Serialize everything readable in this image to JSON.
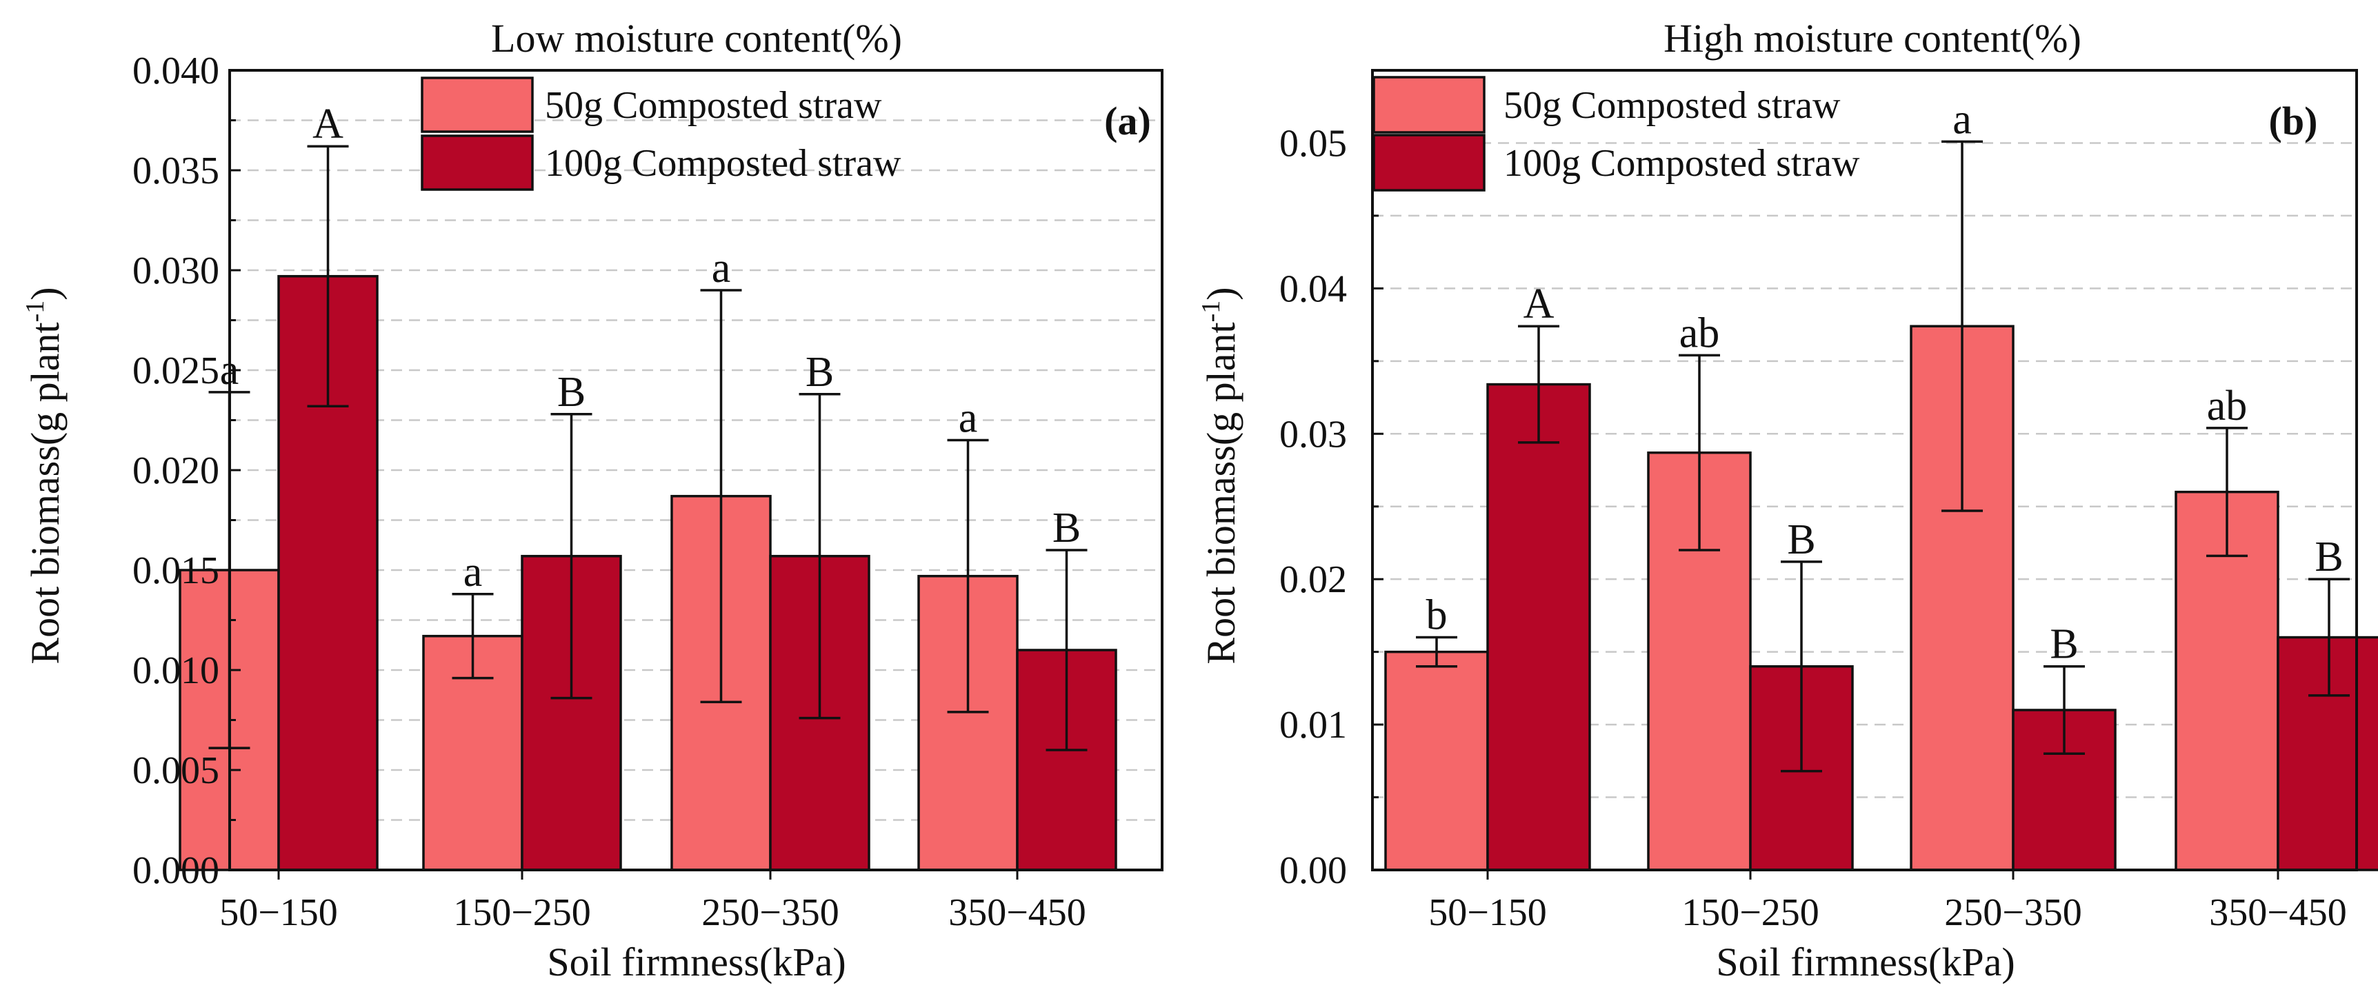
{
  "chart_data": [
    {
      "type": "bar",
      "panel_label": "(a)",
      "title": "Low moisture content(%)",
      "xlabel": "Soil firmness(kPa)",
      "ylabel": "Root biomass(g plant",
      "ylabel_sup": "-1",
      "ylabel_close": ")",
      "ylim": [
        0,
        0.04
      ],
      "yticks": [
        0.0,
        0.005,
        0.01,
        0.015,
        0.02,
        0.025,
        0.03,
        0.035,
        0.04
      ],
      "ytick_labels": [
        "0.000",
        "0.005",
        "0.010",
        "0.015",
        "0.020",
        "0.025",
        "0.030",
        "0.035",
        "0.040"
      ],
      "grid": true,
      "legend_position": "top",
      "categories": [
        "50−150",
        "150−250",
        "250−350",
        "350−450"
      ],
      "series": [
        {
          "name": "50g Composted straw",
          "color": "#f5676a",
          "values": [
            0.015,
            0.0117,
            0.0187,
            0.0147
          ],
          "errors": [
            0.0089,
            0.0021,
            0.0103,
            0.0068
          ],
          "letters": [
            "a",
            "a",
            "a",
            "a"
          ]
        },
        {
          "name": "100g Composted straw",
          "color": "#b50627",
          "values": [
            0.0297,
            0.0157,
            0.0157,
            0.011
          ],
          "errors": [
            0.0065,
            0.0071,
            0.0081,
            0.005
          ],
          "letters": [
            "A",
            "B",
            "B",
            "B"
          ]
        }
      ]
    },
    {
      "type": "bar",
      "panel_label": "(b)",
      "title": "High moisture content(%)",
      "xlabel": "Soil firmness(kPa)",
      "ylabel": "Root biomass(g plant",
      "ylabel_sup": "-1",
      "ylabel_close": ")",
      "ylim": [
        0,
        0.055
      ],
      "yticks": [
        0.0,
        0.01,
        0.02,
        0.03,
        0.04,
        0.05
      ],
      "ytick_labels": [
        "0.00",
        "0.01",
        "0.02",
        "0.03",
        "0.04",
        "0.05"
      ],
      "grid": true,
      "legend_position": "top-left",
      "categories": [
        "50−150",
        "150−250",
        "250−350",
        "350−450"
      ],
      "series": [
        {
          "name": "50g Composted straw",
          "color": "#f5676a",
          "values": [
            0.015,
            0.0287,
            0.0374,
            0.026
          ],
          "errors": [
            0.001,
            0.0067,
            0.0127,
            0.0044
          ],
          "letters": [
            "b",
            "ab",
            "a",
            "ab"
          ]
        },
        {
          "name": "100g Composted straw",
          "color": "#b50627",
          "values": [
            0.0334,
            0.014,
            0.011,
            0.016
          ],
          "errors": [
            0.004,
            0.0072,
            0.003,
            0.004
          ],
          "letters": [
            "A",
            "B",
            "B",
            "B"
          ]
        }
      ]
    }
  ]
}
